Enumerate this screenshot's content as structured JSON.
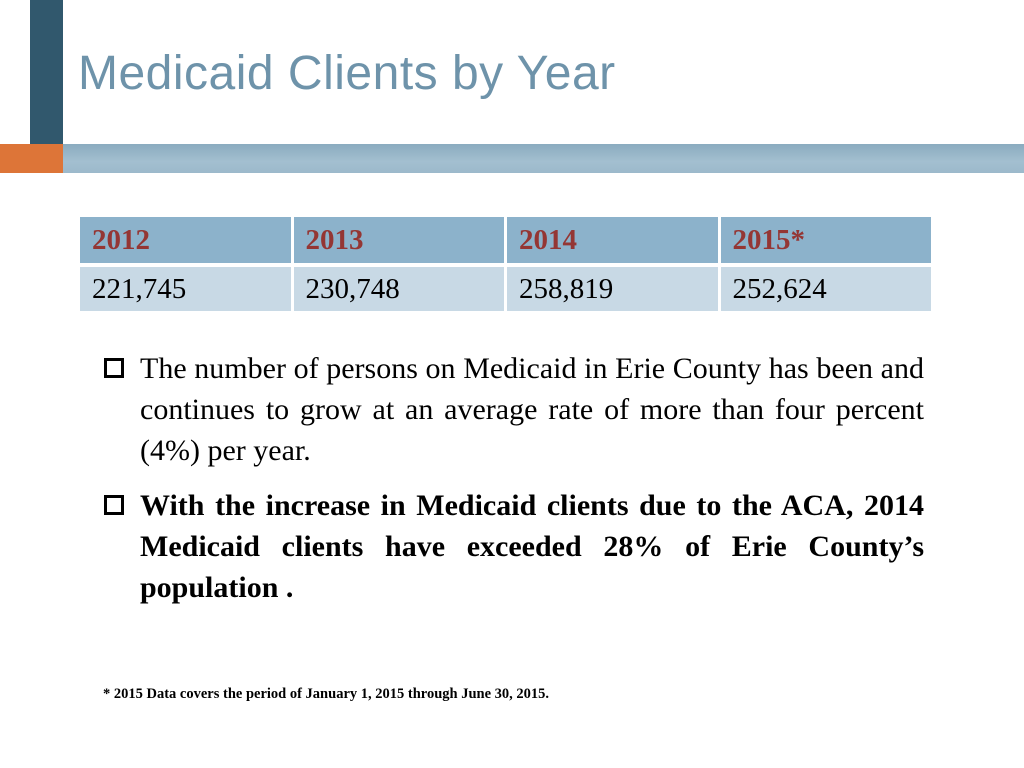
{
  "slide": {
    "title": "Medicaid Clients by Year",
    "table": {
      "headers": [
        "2012",
        "2013",
        "2014",
        "2015*"
      ],
      "row": [
        "221,745",
        "230,748",
        "258,819",
        "252,624"
      ]
    },
    "bullets": [
      {
        "bold": false,
        "text": "The number of persons on Medicaid in Erie County has been and continues to grow at an average rate of more than four percent (4%) per year."
      },
      {
        "bold": true,
        "text": "With the increase in Medicaid clients due to the ACA,  2014 Medicaid clients have exceeded 28% of Erie County’s population ."
      }
    ],
    "footnote": "* 2015 Data covers the period of January 1, 2015 through June 30, 2015.",
    "colors": {
      "title_text": "#6e93aa",
      "horizontal_band": "#9cb9cb",
      "vertical_bar": "#31586d",
      "accent_orange": "#dd7538",
      "table_header_bg": "#8cb2cb",
      "table_row_bg": "#c8d9e5",
      "table_header_text": "#943634"
    }
  },
  "chart_data": {
    "type": "table",
    "title": "Medicaid Clients by Year",
    "categories": [
      "2012",
      "2013",
      "2014",
      "2015*"
    ],
    "values": [
      221745,
      230748,
      258819,
      252624
    ],
    "note": "* 2015 Data covers the period of January 1, 2015 through June 30, 2015."
  }
}
